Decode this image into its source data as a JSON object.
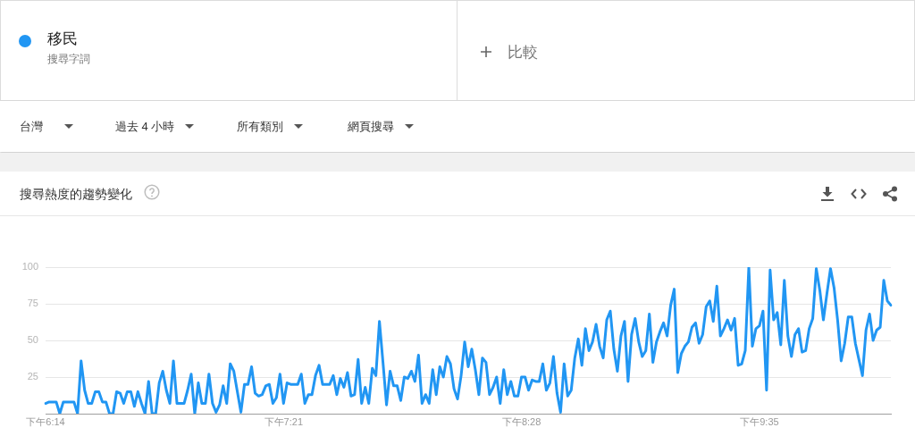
{
  "chart_data": {
    "type": "line",
    "title": "搜尋熱度的趨勢變化",
    "annotations": [
      "搜尋字詞",
      "比較",
      "台灣",
      "過去 4 小時",
      "所有類別",
      "網頁搜尋"
    ],
    "legend": "top left",
    "grid": "y",
    "marker": "none",
    "ylim": [
      0,
      100
    ],
    "yticks": [
      25,
      50,
      75,
      100
    ],
    "categories": [
      "下午6:14",
      null,
      null,
      null,
      null,
      null,
      null,
      null,
      null,
      null,
      null,
      null,
      null,
      null,
      null,
      null,
      null,
      null,
      null,
      null,
      null,
      null,
      null,
      null,
      null,
      null,
      null,
      null,
      null,
      null,
      null,
      null,
      null,
      null,
      null,
      null,
      null,
      null,
      null,
      null,
      null,
      null,
      null,
      null,
      null,
      null,
      null,
      null,
      null,
      null,
      null,
      null,
      null,
      null,
      null,
      null,
      null,
      null,
      null,
      null,
      null,
      null,
      null,
      null,
      null,
      null,
      null,
      "下午7:21",
      null,
      null,
      null,
      null,
      null,
      null,
      null,
      null,
      null,
      null,
      null,
      null,
      null,
      null,
      null,
      null,
      null,
      null,
      null,
      null,
      null,
      null,
      null,
      null,
      null,
      null,
      null,
      null,
      null,
      null,
      null,
      null,
      null,
      null,
      null,
      null,
      null,
      null,
      null,
      null,
      null,
      null,
      null,
      null,
      null,
      null,
      null,
      null,
      null,
      null,
      null,
      null,
      null,
      null,
      null,
      null,
      null,
      null,
      null,
      null,
      null,
      null,
      null,
      null,
      null,
      null,
      "下午8:28",
      null,
      null,
      null,
      null,
      null,
      null,
      null,
      null,
      null,
      null,
      null,
      null,
      null,
      null,
      null,
      null,
      null,
      null,
      null,
      null,
      null,
      null,
      null,
      null,
      null,
      null,
      null,
      null,
      null,
      null,
      null,
      null,
      null,
      null,
      null,
      null,
      null,
      null,
      null,
      null,
      null,
      null,
      null,
      null,
      null,
      null,
      null,
      null,
      null,
      null,
      null,
      null,
      null,
      null,
      null,
      null,
      null,
      null,
      null,
      null,
      null,
      null,
      null,
      null,
      null,
      null,
      "下午9:35",
      null,
      null,
      null,
      null,
      null,
      null,
      null,
      null,
      null,
      null,
      null,
      null,
      null,
      null,
      null,
      null,
      null,
      null,
      null,
      null,
      null,
      null,
      null,
      null,
      null,
      null,
      null,
      null,
      null,
      null,
      null,
      null,
      null,
      null,
      null,
      null,
      null
    ],
    "series": [
      {
        "name": "移民",
        "color": "#2196f3",
        "values": [
          7,
          8,
          8,
          8,
          0,
          8,
          8,
          8,
          8,
          0,
          36,
          16,
          7,
          7,
          15,
          15,
          8,
          8,
          0,
          0,
          15,
          14,
          7,
          15,
          15,
          5,
          15,
          7,
          0,
          22,
          0,
          0,
          21,
          29,
          16,
          7,
          36,
          7,
          7,
          7,
          16,
          27,
          0,
          21,
          7,
          7,
          27,
          7,
          1,
          6,
          19,
          7,
          34,
          29,
          15,
          1,
          20,
          20,
          32,
          14,
          12,
          13,
          19,
          20,
          7,
          11,
          27,
          7,
          21,
          20,
          20,
          20,
          27,
          7,
          13,
          13,
          26,
          33,
          20,
          20,
          20,
          26,
          13,
          24,
          18,
          28,
          12,
          13,
          37,
          7,
          18,
          7,
          31,
          26,
          63,
          35,
          6,
          29,
          19,
          19,
          9,
          25,
          24,
          29,
          22,
          40,
          7,
          13,
          7,
          30,
          13,
          32,
          25,
          39,
          34,
          17,
          10,
          26,
          49,
          32,
          44,
          30,
          13,
          38,
          35,
          13,
          18,
          25,
          7,
          30,
          13,
          22,
          12,
          12,
          25,
          25,
          16,
          23,
          22,
          22,
          34,
          16,
          21,
          39,
          14,
          1,
          34,
          12,
          16,
          38,
          51,
          33,
          58,
          43,
          49,
          61,
          46,
          38,
          64,
          70,
          44,
          29,
          53,
          63,
          22,
          54,
          65,
          49,
          39,
          43,
          68,
          35,
          49,
          56,
          62,
          53,
          74,
          85,
          28,
          41,
          46,
          49,
          59,
          62,
          48,
          54,
          73,
          77,
          63,
          87,
          53,
          58,
          64,
          57,
          65,
          33,
          34,
          43,
          100,
          46,
          58,
          60,
          70,
          16,
          98,
          64,
          69,
          47,
          91,
          53,
          39,
          54,
          58,
          42,
          43,
          58,
          65,
          99,
          84,
          64,
          82,
          99,
          86,
          64,
          36,
          48,
          66,
          66,
          48,
          37,
          26,
          57,
          68,
          50,
          57,
          59,
          91,
          77,
          74
        ]
      }
    ]
  }
}
